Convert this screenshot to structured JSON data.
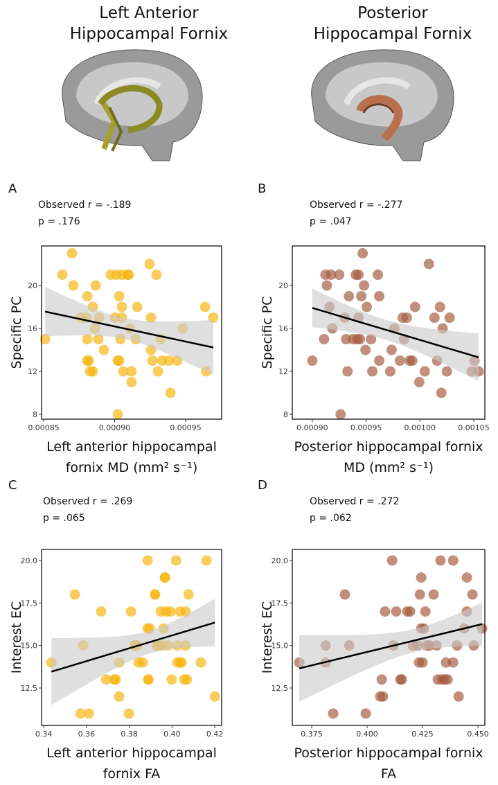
{
  "headers": [
    [
      "Left Anterior",
      "Hippocampal Fornix"
    ],
    [
      "Posterior",
      "Hippocampal Fornix"
    ]
  ],
  "chart_data": [
    {
      "type": "scatter",
      "panel": "A",
      "annotations": [
        "Observed r = -.189",
        "p = .176"
      ],
      "xlabel": [
        "Left anterior hippocampal",
        "fornix MD (mm² s⁻¹)"
      ],
      "ylabel": "Specific PC",
      "color": "#f6b40e",
      "fit_line": true,
      "ci_band": true,
      "xlim": [
        0.0008485,
        0.0009754
      ],
      "ylim": [
        7.55,
        23.68
      ],
      "xticks": [
        0.00085,
        {
          "value": 0.0009,
          "label": "0.00090"
        },
        0.00095
      ],
      "yticks": [
        8,
        12,
        16,
        20
      ],
      "x": [
        0.000851,
        0.0008632,
        0.00087,
        0.000871,
        0.0008763,
        0.0008802,
        0.0008807,
        0.0008807,
        0.0008817,
        0.0008807,
        0.0008827,
        0.0008846,
        0.0008846,
        0.0008866,
        0.0008861,
        0.0008885,
        0.000889,
        0.0008924,
        0.0008973,
        0.0009002,
        0.0009012,
        0.0009022,
        0.0009032,
        0.0009041,
        0.0009032,
        0.0009051,
        0.0009051,
        0.0009022,
        0.0009051,
        0.0009061,
        0.000909,
        0.00091,
        0.000911,
        0.0009119,
        0.0009119,
        0.0009149,
        0.0009159,
        0.0009246,
        0.0009256,
        0.0009256,
        0.0009266,
        0.0009295,
        0.0009305,
        0.0009334,
        0.0009324,
        0.0009383,
        0.0009393,
        0.0009441,
        0.000948,
        0.0009637,
        0.0009646,
        0.0009695
      ],
      "y": [
        15,
        21,
        23,
        20,
        17,
        17,
        15,
        13,
        13,
        19,
        12,
        12,
        18,
        20,
        16,
        15,
        17,
        14,
        21,
        17,
        21,
        13,
        13,
        15,
        19,
        18,
        17,
        8,
        21,
        12,
        21,
        21,
        16,
        11,
        12,
        15,
        18,
        22,
        17,
        14,
        13,
        21,
        12,
        13,
        15,
        13,
        10,
        13,
        16,
        18,
        12,
        17
      ]
    },
    {
      "type": "scatter",
      "panel": "B",
      "annotations": [
        "Observed r = -.277",
        "p = .047"
      ],
      "xlabel": [
        "Posterior hippocampal fornix",
        "MD (mm² s⁻¹)"
      ],
      "ylabel": "Specific PC",
      "color": "#a35a3c",
      "fit_line": true,
      "ci_band": true,
      "xlim": [
        0.0008814,
        0.0010603
      ],
      "ylim": [
        7.55,
        23.68
      ],
      "xticks": [
        {
          "value": 0.0009,
          "label": "0.00090"
        },
        0.00095,
        {
          "value": 0.001,
          "label": "0.00100"
        },
        0.00105
      ],
      "yticks": [
        8,
        12,
        16,
        20
      ],
      "x": [
        0.0009,
        0.0009109,
        0.000916,
        0.0009122,
        0.0009173,
        0.0009135,
        0.0009186,
        0.000925,
        0.0009301,
        0.0009314,
        0.0009327,
        0.000934,
        0.0009378,
        0.0009404,
        0.0009429,
        0.0009417,
        0.0009429,
        0.0009442,
        0.0009455,
        0.0009468,
        0.0009481,
        0.0009494,
        0.0009506,
        0.0009545,
        0.0009558,
        0.0009609,
        0.0009622,
        0.0009622,
        0.0009724,
        0.0009737,
        0.0009763,
        0.0009814,
        0.000984,
        0.0009853,
        0.0009878,
        0.0009904,
        0.0009929,
        0.0009955,
        0.0009994,
        0.0010045,
        0.0010083,
        0.0010135,
        0.001016,
        0.0010186,
        0.0010211,
        0.001025,
        0.0010276,
        0.0010481,
        0.0010506,
        0.0010545,
        0.0010199,
        0.0009263
      ],
      "y": [
        13,
        15,
        18,
        21,
        21,
        20,
        16,
        21,
        17,
        15,
        12,
        19,
        15,
        21,
        21,
        15,
        17,
        15,
        19,
        23,
        20,
        14,
        18,
        15,
        12,
        21,
        13,
        19,
        12,
        14,
        16,
        13,
        17,
        15,
        17,
        13,
        13,
        18,
        11,
        12,
        22,
        17,
        13,
        18,
        16,
        12,
        17,
        12,
        13,
        12,
        10,
        8
      ]
    },
    {
      "type": "scatter",
      "panel": "C",
      "annotations": [
        "Observed r = .269",
        "p = .065"
      ],
      "xlabel": [
        "Left anterior hippocampal",
        "fornix FA"
      ],
      "ylabel": "Interest EC",
      "color": "#f6b40e",
      "fit_line": true,
      "ci_band": true,
      "xlim": [
        0.339,
        0.4232
      ],
      "ylim": [
        10.3,
        20.65
      ],
      "xticks": [
        0.34,
        0.36,
        0.38,
        {
          "value": 0.4,
          "label": "0.40"
        },
        0.42
      ],
      "yticks": [
        12.5,
        {
          "value": 15,
          "label": "15.0"
        },
        17.5,
        {
          "value": 20,
          "label": "20.0"
        }
      ],
      "x": [
        0.3436,
        0.3546,
        0.3572,
        0.3585,
        0.3611,
        0.3669,
        0.3692,
        0.373,
        0.3737,
        0.3753,
        0.3753,
        0.3798,
        0.3808,
        0.3824,
        0.3837,
        0.3844,
        0.3863,
        0.3886,
        0.3886,
        0.3889,
        0.3889,
        0.3896,
        0.3921,
        0.3921,
        0.3928,
        0.3934,
        0.3947,
        0.3954,
        0.396,
        0.3967,
        0.3967,
        0.3973,
        0.398,
        0.3993,
        0.3999,
        0.4019,
        0.4025,
        0.4025,
        0.4038,
        0.4038,
        0.4045,
        0.4057,
        0.4064,
        0.4064,
        0.407,
        0.4077,
        0.4135,
        0.4161,
        0.42
      ],
      "y": [
        14,
        18,
        11,
        15,
        11,
        17,
        13,
        13,
        13,
        12,
        14,
        11,
        17,
        15,
        15,
        14,
        14,
        20,
        16,
        13,
        13,
        16,
        18,
        18,
        15,
        15,
        17,
        15,
        16,
        19,
        19,
        17,
        15,
        17,
        13,
        20,
        14,
        15,
        17,
        14,
        14,
        13,
        17,
        15,
        13,
        18,
        14,
        20,
        12
      ]
    },
    {
      "type": "scatter",
      "panel": "D",
      "annotations": [
        "Observed r = .272",
        "p = .062"
      ],
      "xlabel": [
        "Posterior hippocampal fornix",
        "FA"
      ],
      "ylabel": "Interest EC",
      "color": "#a35a3c",
      "fit_line": true,
      "ci_band": true,
      "xlim": [
        0.36625,
        0.4531
      ],
      "ylim": [
        10.3,
        20.65
      ],
      "xticks": [
        0.375,
        {
          "value": 0.4,
          "label": "0.400"
        },
        0.425,
        {
          "value": 0.45,
          "label": "0.450"
        }
      ],
      "yticks": [
        12.5,
        {
          "value": 15,
          "label": "15.0"
        },
        17.5,
        {
          "value": 20,
          "label": "20.0"
        }
      ],
      "x": [
        0.3694,
        0.3813,
        0.3813,
        0.3847,
        0.3919,
        0.39,
        0.3994,
        0.4059,
        0.4072,
        0.4066,
        0.4081,
        0.4113,
        0.4119,
        0.4131,
        0.415,
        0.4156,
        0.4181,
        0.4194,
        0.4206,
        0.4228,
        0.4234,
        0.4238,
        0.4244,
        0.4244,
        0.425,
        0.4256,
        0.4263,
        0.4269,
        0.4281,
        0.43,
        0.4313,
        0.4319,
        0.4331,
        0.4338,
        0.435,
        0.4356,
        0.4363,
        0.4388,
        0.4388,
        0.4406,
        0.4413,
        0.4438,
        0.445,
        0.445,
        0.4475,
        0.4481,
        0.4519
      ],
      "y": [
        14,
        15,
        14,
        11,
        15,
        18,
        11,
        12,
        12,
        13,
        17,
        20,
        15,
        17,
        13,
        13,
        17,
        17,
        15,
        15,
        14,
        18,
        19,
        16,
        14,
        16,
        17,
        15,
        15,
        18,
        15,
        13,
        20,
        13,
        13,
        14,
        13,
        14,
        20,
        15,
        12,
        16,
        19,
        17,
        18,
        15,
        16
      ]
    }
  ]
}
